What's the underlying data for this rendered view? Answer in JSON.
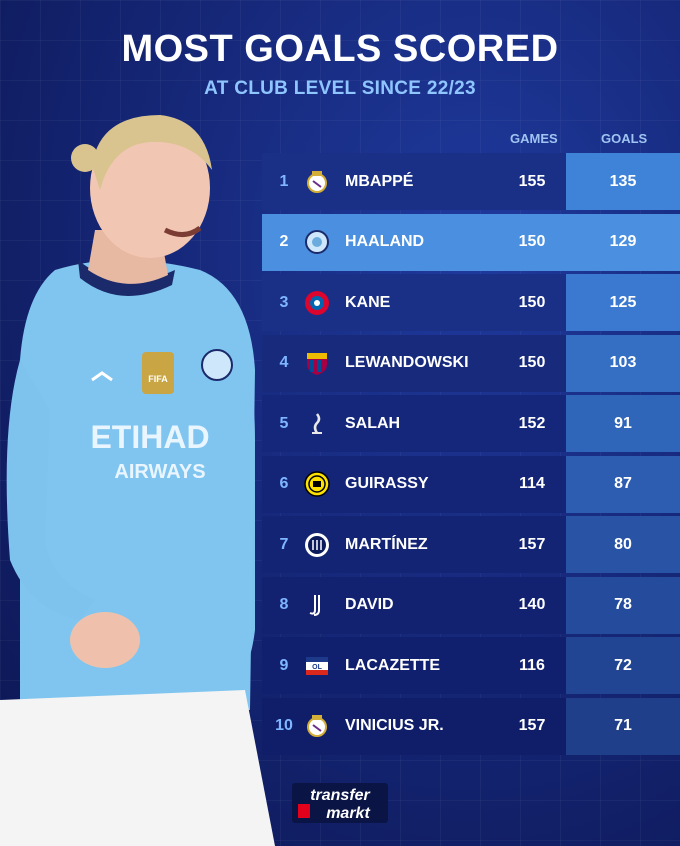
{
  "header": {
    "title": "MOST GOALS SCORED",
    "subtitle": "AT CLUB LEVEL SINCE 22/23"
  },
  "columns": {
    "games": "GAMES",
    "goals": "GOALS"
  },
  "player_shirt": {
    "sponsor_line1": "ETIHAD",
    "sponsor_line2": "AIRWAYS",
    "badge": "FIFA"
  },
  "rows": [
    {
      "rank": "1",
      "club_icon": "real-madrid-crest",
      "name": "MBAPPÉ",
      "games": "155",
      "goals": "135"
    },
    {
      "rank": "2",
      "club_icon": "man-city-crest",
      "name": "HAALAND",
      "games": "150",
      "goals": "129"
    },
    {
      "rank": "3",
      "club_icon": "bayern-crest",
      "name": "KANE",
      "games": "150",
      "goals": "125"
    },
    {
      "rank": "4",
      "club_icon": "barcelona-crest",
      "name": "LEWANDOWSKI",
      "games": "150",
      "goals": "103"
    },
    {
      "rank": "5",
      "club_icon": "liverpool-crest",
      "name": "SALAH",
      "games": "152",
      "goals": "91"
    },
    {
      "rank": "6",
      "club_icon": "dortmund-crest",
      "name": "GUIRASSY",
      "games": "114",
      "goals": "87"
    },
    {
      "rank": "7",
      "club_icon": "inter-crest",
      "name": "MARTÍNEZ",
      "games": "157",
      "goals": "80"
    },
    {
      "rank": "8",
      "club_icon": "juventus-crest",
      "name": "DAVID",
      "games": "140",
      "goals": "78"
    },
    {
      "rank": "9",
      "club_icon": "lyon-crest",
      "name": "LACAZETTE",
      "games": "116",
      "goals": "72"
    },
    {
      "rank": "10",
      "club_icon": "real-madrid-crest",
      "name": "VINICIUS JR.",
      "games": "157",
      "goals": "71"
    }
  ],
  "footer": {
    "logo_line1": "transfer",
    "logo_line2": "markt"
  },
  "colors": {
    "background": "#16287a",
    "accent": "#4a8fe0",
    "subtitle": "#8fc6ff",
    "highlight_row": "#4a8fe0"
  }
}
